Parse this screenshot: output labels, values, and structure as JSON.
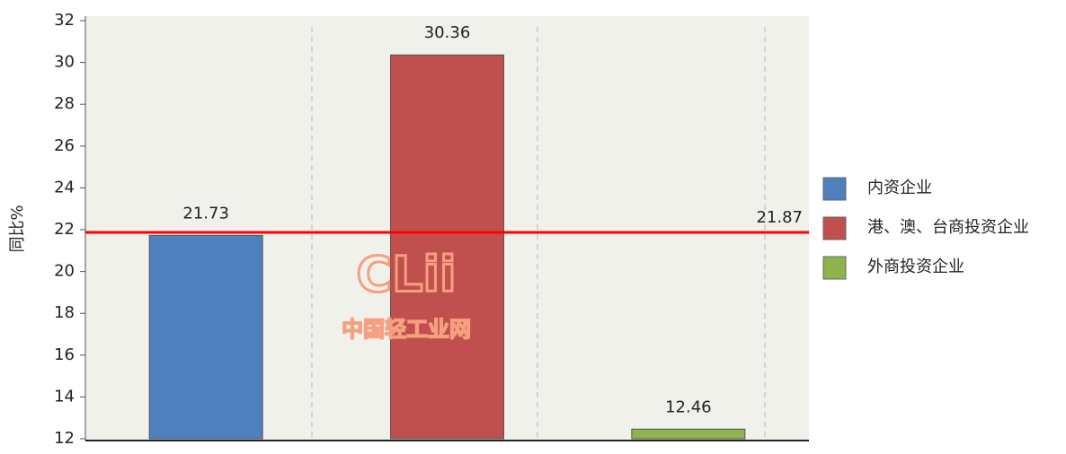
{
  "chart_data": {
    "type": "bar",
    "y_label": "同比%",
    "categories": [
      null,
      null,
      null
    ],
    "series": [
      {
        "name": "内资企业",
        "color": "#4f7fbd",
        "values": [
          21.73,
          null,
          null
        ]
      },
      {
        "name": "港、澳、台商投资企业",
        "color": "#c0504d",
        "values": [
          null,
          30.36,
          null
        ]
      },
      {
        "name": "外商投资企业",
        "color": "#8db44e",
        "values": [
          null,
          null,
          12.46
        ]
      }
    ],
    "reference_line": {
      "value": 21.87,
      "color": "#ff0000"
    },
    "ylim": [
      12,
      32
    ],
    "yticks": [
      12,
      14,
      16,
      18,
      20,
      22,
      24,
      26,
      28,
      30,
      32
    ],
    "legend": "right",
    "watermark": {
      "logo": "CLii",
      "text": "中国轻工业网"
    }
  }
}
